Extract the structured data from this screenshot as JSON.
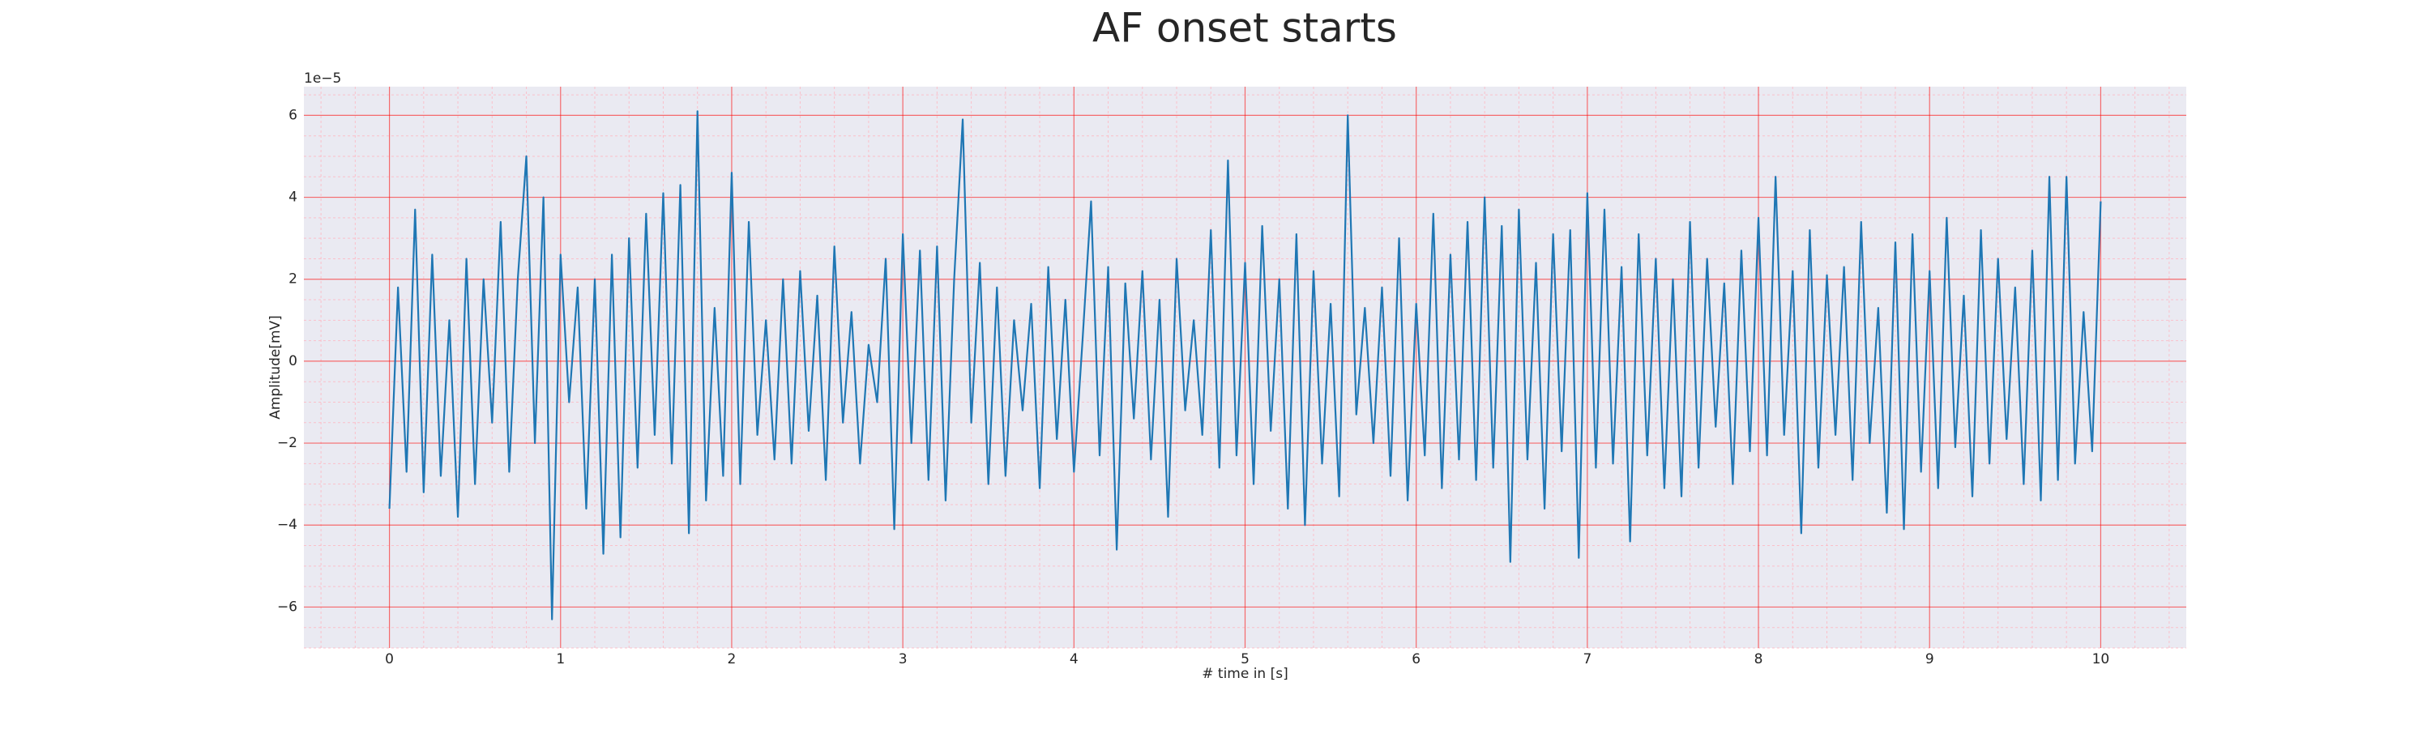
{
  "chart_data": {
    "type": "line",
    "title": "AF onset starts",
    "x_label": "# time in [s]",
    "y_label": "Amplitude[mV]",
    "y_offset_label": "1e−5",
    "color": "#1f77b4",
    "background": "#eaeaf2",
    "grid": true,
    "grid_color": "#ff0000",
    "minor_grid": true,
    "minor_grid_color": "#ffb6c1",
    "x_minor_divisions": 5,
    "y_minor_divisions": 4,
    "xlim": [
      -0.5,
      10.5
    ],
    "ylim": [
      -7,
      6.7
    ],
    "xticks": [
      0,
      1,
      2,
      3,
      4,
      5,
      6,
      7,
      8,
      9,
      10
    ],
    "yticks": [
      {
        "value": -6,
        "label": "−6"
      },
      {
        "value": -4,
        "label": "−4"
      },
      {
        "value": -2,
        "label": "−2"
      },
      0,
      2,
      4,
      6
    ],
    "x": [
      0.0,
      0.05,
      0.1,
      0.15,
      0.2,
      0.25,
      0.3,
      0.35,
      0.4,
      0.45,
      0.5,
      0.55,
      0.6,
      0.65,
      0.7,
      0.75,
      0.8,
      0.85,
      0.9,
      0.95,
      1.0,
      1.05,
      1.1,
      1.15,
      1.2,
      1.25,
      1.3,
      1.35,
      1.4,
      1.45,
      1.5,
      1.55,
      1.6,
      1.65,
      1.7,
      1.75,
      1.8,
      1.85,
      1.9,
      1.95,
      2.0,
      2.05,
      2.1,
      2.15,
      2.2,
      2.25,
      2.3,
      2.35,
      2.4,
      2.45,
      2.5,
      2.55,
      2.6,
      2.65,
      2.7,
      2.75,
      2.8,
      2.85,
      2.9,
      2.95,
      3.0,
      3.05,
      3.1,
      3.15,
      3.2,
      3.25,
      3.3,
      3.35,
      3.4,
      3.45,
      3.5,
      3.55,
      3.6,
      3.65,
      3.7,
      3.75,
      3.8,
      3.85,
      3.9,
      3.95,
      4.0,
      4.05,
      4.1,
      4.15,
      4.2,
      4.25,
      4.3,
      4.35,
      4.4,
      4.45,
      4.5,
      4.55,
      4.6,
      4.65,
      4.7,
      4.75,
      4.8,
      4.85,
      4.9,
      4.95,
      5.0,
      5.05,
      5.1,
      5.15,
      5.2,
      5.25,
      5.3,
      5.35,
      5.4,
      5.45,
      5.5,
      5.55,
      5.6,
      5.65,
      5.7,
      5.75,
      5.8,
      5.85,
      5.9,
      5.95,
      6.0,
      6.05,
      6.1,
      6.15,
      6.2,
      6.25,
      6.3,
      6.35,
      6.4,
      6.45,
      6.5,
      6.55,
      6.6,
      6.65,
      6.7,
      6.75,
      6.8,
      6.85,
      6.9,
      6.95,
      7.0,
      7.05,
      7.1,
      7.15,
      7.2,
      7.25,
      7.3,
      7.35,
      7.4,
      7.45,
      7.5,
      7.55,
      7.6,
      7.65,
      7.7,
      7.75,
      7.8,
      7.85,
      7.9,
      7.95,
      8.0,
      8.05,
      8.1,
      8.15,
      8.2,
      8.25,
      8.3,
      8.35,
      8.4,
      8.45,
      8.5,
      8.55,
      8.6,
      8.65,
      8.7,
      8.75,
      8.8,
      8.85,
      8.9,
      8.95,
      9.0,
      9.05,
      9.1,
      9.15,
      9.2,
      9.25,
      9.3,
      9.35,
      9.4,
      9.45,
      9.5,
      9.55,
      9.6,
      9.65,
      9.7,
      9.75,
      9.8,
      9.85,
      9.9,
      9.95,
      10.0
    ],
    "values": [
      -3.6,
      1.8,
      -2.7,
      3.7,
      -3.2,
      2.6,
      -2.8,
      1.0,
      -3.8,
      2.5,
      -3.0,
      2.0,
      -1.5,
      3.4,
      -2.7,
      2.0,
      5.0,
      -2.0,
      4.0,
      -6.3,
      2.6,
      -1.0,
      1.8,
      -3.6,
      2.0,
      -4.7,
      2.6,
      -4.3,
      3.0,
      -2.6,
      3.6,
      -1.8,
      4.1,
      -2.5,
      4.3,
      -4.2,
      6.1,
      -3.4,
      1.3,
      -2.8,
      4.6,
      -3.0,
      3.4,
      -1.8,
      1.0,
      -2.4,
      2.0,
      -2.5,
      2.2,
      -1.7,
      1.6,
      -2.9,
      2.8,
      -1.5,
      1.2,
      -2.5,
      0.4,
      -1.0,
      2.5,
      -4.1,
      3.1,
      -2.0,
      2.7,
      -2.9,
      2.8,
      -3.4,
      2.0,
      5.9,
      -1.5,
      2.4,
      -3.0,
      1.8,
      -2.8,
      1.0,
      -1.2,
      1.4,
      -3.1,
      2.3,
      -1.9,
      1.5,
      -2.7,
      0.5,
      3.9,
      -2.3,
      2.3,
      -4.6,
      1.9,
      -1.4,
      2.2,
      -2.4,
      1.5,
      -3.8,
      2.5,
      -1.2,
      1.0,
      -1.8,
      3.2,
      -2.6,
      4.9,
      -2.3,
      2.4,
      -3.0,
      3.3,
      -1.7,
      2.0,
      -3.6,
      3.1,
      -4.0,
      2.2,
      -2.5,
      1.4,
      -3.3,
      6.0,
      -1.3,
      1.3,
      -2.0,
      1.8,
      -2.8,
      3.0,
      -3.4,
      1.4,
      -2.3,
      3.6,
      -3.1,
      2.6,
      -2.4,
      3.4,
      -2.9,
      4.0,
      -2.6,
      3.3,
      -4.9,
      3.7,
      -2.4,
      2.4,
      -3.6,
      3.1,
      -2.2,
      3.2,
      -4.8,
      4.1,
      -2.6,
      3.7,
      -2.5,
      2.3,
      -4.4,
      3.1,
      -2.3,
      2.5,
      -3.1,
      2.0,
      -3.3,
      3.4,
      -2.6,
      2.5,
      -1.6,
      1.9,
      -3.0,
      2.7,
      -2.2,
      3.5,
      -2.3,
      4.5,
      -1.8,
      2.2,
      -4.2,
      3.2,
      -2.6,
      2.1,
      -1.8,
      2.3,
      -2.9,
      3.4,
      -2.0,
      1.3,
      -3.7,
      2.9,
      -4.1,
      3.1,
      -2.7,
      2.2,
      -3.1,
      3.5,
      -2.1,
      1.6,
      -3.3,
      3.2,
      -2.5,
      2.5,
      -1.9,
      1.8,
      -3.0,
      2.7,
      -3.4,
      4.5,
      -2.9,
      4.5,
      -2.5,
      1.2,
      -2.2,
      3.9
    ]
  }
}
